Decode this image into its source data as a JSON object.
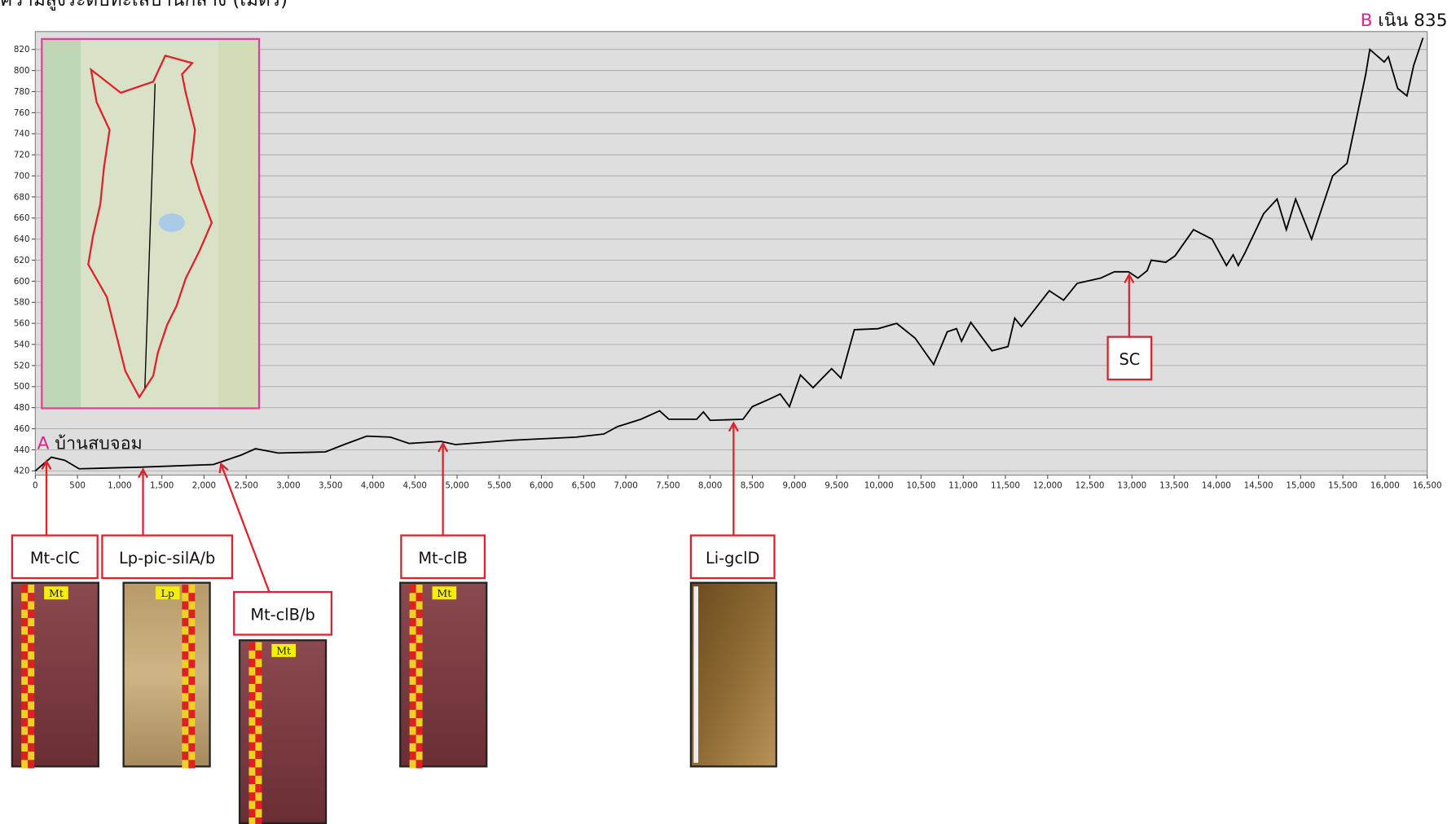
{
  "chart_data": {
    "type": "line",
    "title": "ความสูงระดับทะเลปานกลาง (เมตร)",
    "color": "#000000",
    "grid": true,
    "x": [
      0,
      190,
      350,
      520,
      1230,
      2110,
      2440,
      2610,
      2880,
      3440,
      3660,
      3930,
      4210,
      4430,
      4810,
      4980,
      5640,
      6410,
      6740,
      6900,
      7180,
      7400,
      7510,
      7840,
      7920,
      8000,
      8390,
      8500,
      8670,
      8830,
      8940,
      9070,
      9220,
      9330,
      9440,
      9550,
      9710,
      9990,
      10210,
      10430,
      10650,
      10810,
      10920,
      10980,
      11090,
      11340,
      11530,
      11610,
      11690,
      12020,
      12190,
      12350,
      12630,
      12790,
      12960,
      13070,
      13180,
      13230,
      13400,
      13510,
      13730,
      13950,
      14120,
      14200,
      14260,
      14340,
      14560,
      14720,
      14830,
      14940,
      15130,
      15380,
      15550,
      15770,
      15820,
      15990,
      16040,
      16150,
      16260,
      16340,
      16450
    ],
    "values": [
      420,
      433,
      430,
      422,
      423.5,
      426,
      435,
      441,
      437,
      438,
      445,
      453,
      452,
      446,
      448,
      445,
      449,
      452,
      455,
      462,
      469,
      477,
      469,
      469,
      476,
      468,
      469,
      481,
      487,
      493,
      481,
      511,
      499,
      508,
      517,
      508,
      554,
      555,
      560,
      546,
      521,
      552,
      555,
      543,
      561,
      534,
      538,
      565,
      557,
      591,
      582,
      598,
      603,
      609,
      609,
      603,
      610,
      620,
      618,
      624,
      649,
      640,
      615,
      625,
      615,
      627,
      664,
      678,
      649,
      678,
      640,
      700,
      712,
      796,
      820,
      808,
      813,
      783,
      776,
      805,
      831
    ],
    "xlim": [
      0,
      16500
    ],
    "ylim": [
      416,
      837
    ],
    "xticks": [
      0,
      500,
      {
        "value": 1000,
        "label": "1,000"
      },
      {
        "value": 1500,
        "label": "1,500"
      },
      {
        "value": 2000,
        "label": "2,000"
      },
      {
        "value": 2500,
        "label": "2,500"
      },
      {
        "value": 3000,
        "label": "3,000"
      },
      {
        "value": 3500,
        "label": "3,500"
      },
      {
        "value": 4000,
        "label": "4,000"
      },
      {
        "value": 4500,
        "label": "4,500"
      },
      {
        "value": 5000,
        "label": "5,000"
      },
      {
        "value": 5500,
        "label": "5,500"
      },
      {
        "value": 6000,
        "label": "6,000"
      },
      {
        "value": 6500,
        "label": "6,500"
      },
      {
        "value": 7000,
        "label": "7,000"
      },
      {
        "value": 7500,
        "label": "7,500"
      },
      {
        "value": 8000,
        "label": "8,000"
      },
      {
        "value": 8500,
        "label": "8,500"
      },
      {
        "value": 9000,
        "label": "9,000"
      },
      {
        "value": 9500,
        "label": "9,500"
      },
      {
        "value": 10000,
        "label": "10,000"
      },
      {
        "value": 10500,
        "label": "10,500"
      },
      {
        "value": 11000,
        "label": "11,000"
      },
      {
        "value": 11500,
        "label": "11,500"
      },
      {
        "value": 12000,
        "label": "12,000"
      },
      {
        "value": 12500,
        "label": "12,500"
      },
      {
        "value": 13000,
        "label": "13,000"
      },
      {
        "value": 13500,
        "label": "13,500"
      },
      {
        "value": 14000,
        "label": "14,000"
      },
      {
        "value": 14500,
        "label": "14,500"
      },
      {
        "value": 15000,
        "label": "15,000"
      },
      {
        "value": 15500,
        "label": "15,500"
      },
      {
        "value": 16000,
        "label": "16,000"
      },
      {
        "value": 16500,
        "label": "16,500"
      }
    ],
    "yticks": [
      420,
      440,
      460,
      480,
      500,
      520,
      540,
      560,
      580,
      600,
      620,
      640,
      660,
      680,
      700,
      720,
      740,
      760,
      780,
      800,
      820
    ],
    "point_labels": [
      {
        "marker": "A",
        "name": "บ้านสบจอม"
      },
      {
        "marker": "B",
        "name": "เนิน 835"
      }
    ],
    "annotations": [
      {
        "label": "Mt-clC",
        "tag": "Mt"
      },
      {
        "label": "Lp-pic-silA/b",
        "tag": "Lp"
      },
      {
        "label": "Mt-clB/b",
        "tag": "Mt"
      },
      {
        "label": "Mt-clB",
        "tag": "Mt"
      },
      {
        "label": "Li-gclD"
      },
      {
        "label": "SC"
      }
    ]
  }
}
